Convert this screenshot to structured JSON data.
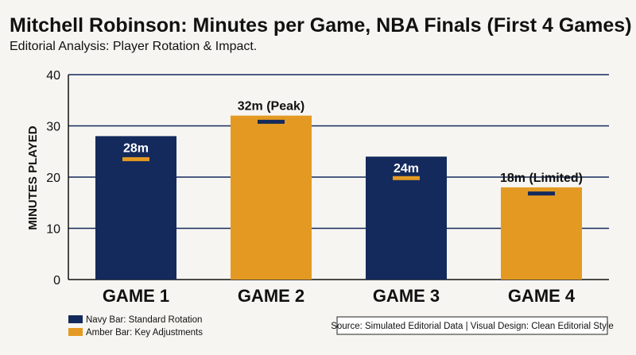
{
  "colors": {
    "navy": "#142a5c",
    "amber": "#e49a22",
    "grid": "#142a5c",
    "text": "#111111",
    "background": "#f6f5f1"
  },
  "chart_data": {
    "type": "bar",
    "title": "Mitchell Robinson: Minutes per Game, NBA Finals (First 4 Games)",
    "subtitle": "Editorial Analysis: Player Rotation & Impact.",
    "ylabel": "MINUTES PLAYED",
    "xlabel": "",
    "ylim": [
      0,
      40
    ],
    "yticks": [
      0,
      10,
      20,
      30,
      40
    ],
    "grid": true,
    "categories": [
      "GAME 1",
      "GAME 2",
      "GAME 3",
      "GAME 4"
    ],
    "values": [
      28,
      32,
      24,
      18
    ],
    "bar_colors": [
      "navy",
      "amber",
      "navy",
      "amber"
    ],
    "data_labels": [
      "28m",
      "32m (Peak)",
      "24m",
      "18m (Limited)"
    ],
    "marker_values": [
      23.5,
      30.8,
      19.8,
      16.8
    ],
    "legend": {
      "placement": "bottom-left",
      "items": [
        {
          "label": "Navy Bar: Standard Rotation",
          "color": "navy"
        },
        {
          "label": "Amber Bar: Key Adjustments",
          "color": "amber"
        }
      ]
    },
    "source": "Source: Simulated Editorial Data | Visual Design: Clean Editorial Style"
  }
}
